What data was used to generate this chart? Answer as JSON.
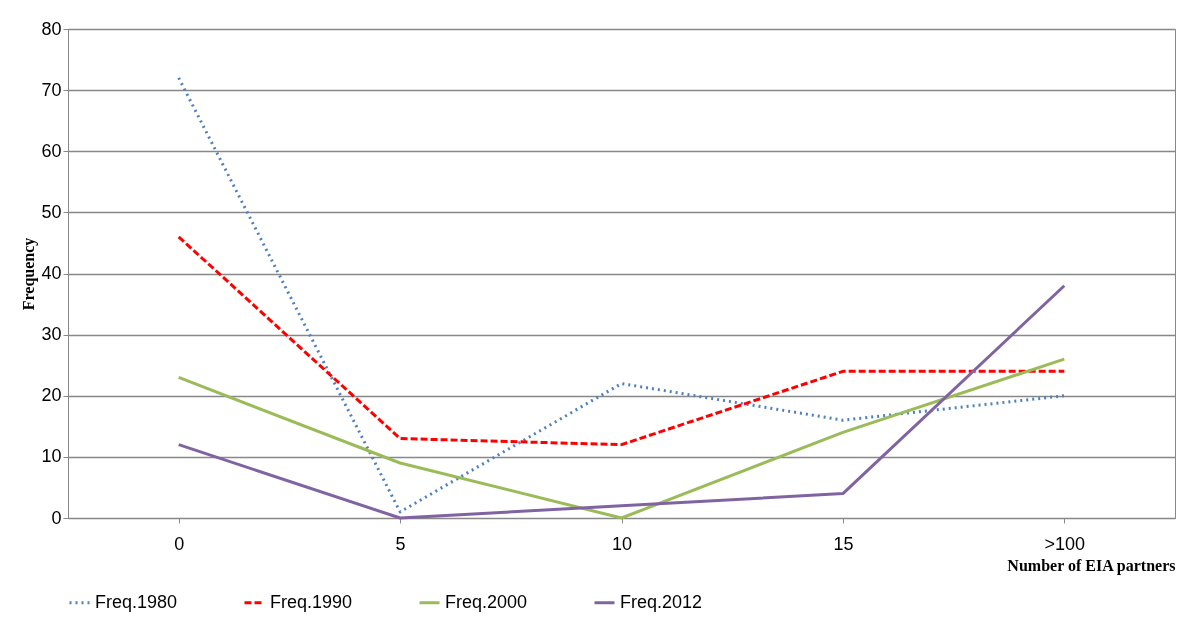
{
  "chart_data": {
    "type": "line",
    "xlabel": "Number of EIA partners",
    "ylabel": "Frequency",
    "categories": [
      "0",
      "5",
      "10",
      "15",
      ">100"
    ],
    "series": [
      {
        "name": "Freq.1980",
        "color": "#4f81bd",
        "line_style": "dotted",
        "values": [
          72,
          1,
          22,
          16,
          20
        ]
      },
      {
        "name": "Freq.1990",
        "color": "#ff0000",
        "line_style": "dashed",
        "values": [
          46,
          13,
          12,
          24,
          24
        ]
      },
      {
        "name": "Freq.2000",
        "color": "#9bbb59",
        "line_style": "solid",
        "values": [
          23,
          9,
          0,
          14,
          26
        ]
      },
      {
        "name": "Freq.2012",
        "color": "#8064a2",
        "line_style": "solid",
        "values": [
          12,
          0,
          2,
          4,
          38
        ]
      }
    ],
    "ylim": [
      0,
      80
    ],
    "yticks": [
      0,
      10,
      20,
      30,
      40,
      50,
      60,
      70,
      80
    ],
    "grid": "y",
    "legend": "bottom",
    "marker": "none"
  }
}
